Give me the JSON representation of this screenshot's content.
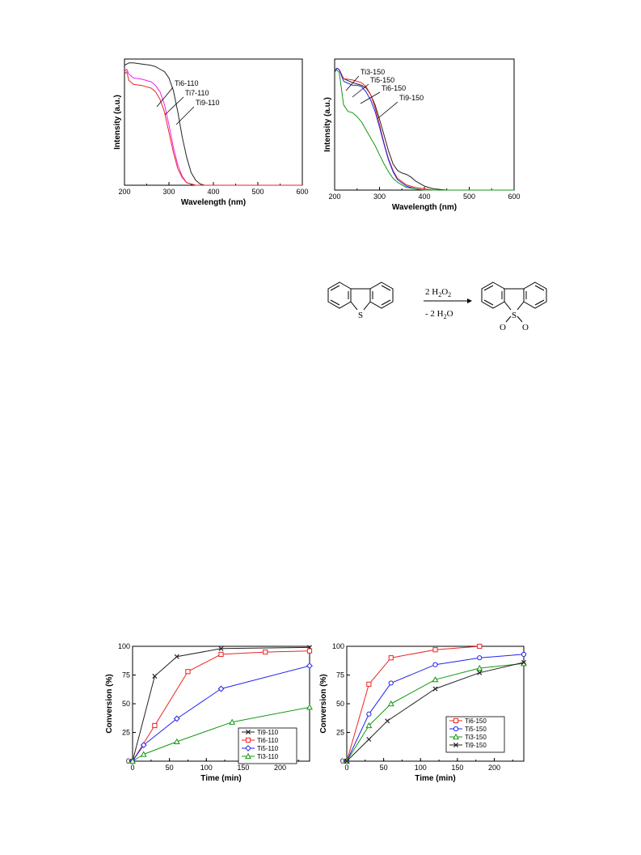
{
  "colors": {
    "black": "#222222",
    "red": "#ee2222",
    "blue": "#2222ee",
    "green": "#119911",
    "magenta": "#ee22ee"
  },
  "uv_left": {
    "chart_data": {
      "type": "line",
      "xlabel": "Wavelength (nm)",
      "ylabel": "Intensity (a.u.)",
      "xlim": [
        200,
        600
      ],
      "ylim": [
        0,
        1.0
      ],
      "xticks": [
        "200",
        "300",
        "400",
        "500",
        "600"
      ],
      "series": [
        {
          "name": "Ti6-110",
          "color": "#222222",
          "x": [
            200,
            210,
            220,
            240,
            260,
            270,
            280,
            290,
            300,
            310,
            320,
            330,
            340,
            350,
            360,
            370,
            380,
            400,
            600
          ],
          "y": [
            0.95,
            0.97,
            0.97,
            0.96,
            0.95,
            0.94,
            0.92,
            0.9,
            0.85,
            0.75,
            0.58,
            0.38,
            0.22,
            0.1,
            0.04,
            0.01,
            0.0,
            0.0,
            0.0
          ]
        },
        {
          "name": "Ti7-110",
          "color": "#ee22ee",
          "x": [
            200,
            205,
            210,
            220,
            240,
            260,
            270,
            280,
            290,
            300,
            310,
            320,
            330,
            340,
            350,
            360,
            380,
            600
          ],
          "y": [
            0.9,
            0.92,
            0.88,
            0.85,
            0.84,
            0.82,
            0.79,
            0.74,
            0.64,
            0.48,
            0.3,
            0.16,
            0.07,
            0.02,
            0.01,
            0.0,
            0.0,
            0.0
          ]
        },
        {
          "name": "Ti9-110",
          "color": "#ee2222",
          "x": [
            200,
            205,
            210,
            220,
            240,
            260,
            270,
            280,
            290,
            300,
            310,
            320,
            330,
            340,
            350,
            360,
            380,
            600
          ],
          "y": [
            0.88,
            0.9,
            0.83,
            0.8,
            0.79,
            0.77,
            0.74,
            0.68,
            0.58,
            0.42,
            0.26,
            0.13,
            0.06,
            0.02,
            0.01,
            0.0,
            0.0,
            0.0
          ]
        }
      ],
      "annotations": [
        "Ti6-110",
        "Ti7-110",
        "Ti9-110"
      ]
    }
  },
  "uv_right": {
    "chart_data": {
      "type": "line",
      "xlabel": "Wavelength (nm)",
      "ylabel": "Intensity (a.u.)",
      "xlim": [
        200,
        600
      ],
      "ylim": [
        0,
        1.0
      ],
      "xticks": [
        "200",
        "300",
        "400",
        "500",
        "600"
      ],
      "series": [
        {
          "name": "Ti3-150",
          "color": "#222222",
          "x": [
            200,
            205,
            210,
            220,
            240,
            260,
            270,
            280,
            290,
            300,
            310,
            320,
            330,
            340,
            350,
            360,
            370,
            380,
            400,
            420,
            450,
            600
          ],
          "y": [
            0.9,
            0.93,
            0.92,
            0.85,
            0.82,
            0.8,
            0.78,
            0.73,
            0.65,
            0.54,
            0.42,
            0.3,
            0.2,
            0.15,
            0.13,
            0.12,
            0.1,
            0.07,
            0.03,
            0.01,
            0.0,
            0.0
          ]
        },
        {
          "name": "Ti5-150",
          "color": "#ee2222",
          "x": [
            200,
            205,
            210,
            220,
            240,
            260,
            270,
            280,
            290,
            300,
            310,
            320,
            330,
            340,
            360,
            380,
            400,
            420,
            600
          ],
          "y": [
            0.9,
            0.93,
            0.92,
            0.85,
            0.84,
            0.82,
            0.79,
            0.73,
            0.63,
            0.5,
            0.36,
            0.24,
            0.15,
            0.09,
            0.04,
            0.02,
            0.01,
            0.0,
            0.0
          ]
        },
        {
          "name": "Ti6-150",
          "color": "#2222ee",
          "x": [
            200,
            205,
            210,
            220,
            240,
            250,
            260,
            270,
            280,
            290,
            300,
            310,
            320,
            330,
            340,
            360,
            380,
            400,
            420,
            600
          ],
          "y": [
            0.9,
            0.93,
            0.92,
            0.83,
            0.8,
            0.8,
            0.79,
            0.75,
            0.69,
            0.6,
            0.48,
            0.35,
            0.23,
            0.14,
            0.08,
            0.03,
            0.01,
            0.0,
            0.0,
            0.0
          ]
        },
        {
          "name": "Ti9-150",
          "color": "#119911",
          "x": [
            200,
            210,
            220,
            230,
            240,
            250,
            260,
            270,
            280,
            290,
            300,
            310,
            320,
            330,
            340,
            360,
            380,
            400,
            420,
            600
          ],
          "y": [
            0.93,
            0.9,
            0.65,
            0.6,
            0.59,
            0.56,
            0.52,
            0.46,
            0.4,
            0.34,
            0.27,
            0.2,
            0.14,
            0.09,
            0.06,
            0.02,
            0.01,
            0.0,
            0.0,
            0.0
          ]
        }
      ],
      "annotations": [
        "Ti3-150",
        "Ti5-150",
        "Ti6-150",
        "Ti9-150"
      ]
    }
  },
  "reaction": {
    "reagent_top": "2 H",
    "reagent_top_sub": "2",
    "reagent_top_o": "O",
    "reagent_top_sub2": "2",
    "reagent_bottom": "- 2 H",
    "reagent_bottom_sub": "2",
    "reagent_bottom_o": "O",
    "atom_s": "S",
    "atom_o": "O"
  },
  "conv_left": {
    "chart_data": {
      "type": "line",
      "xlabel": "Time (min)",
      "ylabel": "Conversion (%)",
      "xlim": [
        0,
        240
      ],
      "ylim": [
        0,
        100
      ],
      "xticks": [
        "0",
        "50",
        "100",
        "150",
        "200"
      ],
      "yticks": [
        "0",
        "25",
        "50",
        "75",
        "100"
      ],
      "legend_position": "bottom-right",
      "series": [
        {
          "name": "Ti9-110",
          "color": "#222222",
          "marker": "x",
          "x": [
            0,
            30,
            60,
            120,
            240
          ],
          "y": [
            0,
            74,
            91,
            98,
            99
          ]
        },
        {
          "name": "Ti6-110",
          "color": "#ee2222",
          "marker": "square",
          "x": [
            0,
            30,
            75,
            120,
            180,
            240
          ],
          "y": [
            0,
            31,
            78,
            93,
            95,
            96
          ]
        },
        {
          "name": "Ti5-110",
          "color": "#2222ee",
          "marker": "diamond",
          "x": [
            0,
            15,
            60,
            120,
            240
          ],
          "y": [
            0,
            14,
            37,
            63,
            83
          ]
        },
        {
          "name": "Ti3-110",
          "color": "#119911",
          "marker": "triangle",
          "x": [
            0,
            15,
            60,
            135,
            240
          ],
          "y": [
            0,
            6,
            17,
            34,
            47
          ]
        }
      ]
    }
  },
  "conv_right": {
    "chart_data": {
      "type": "line",
      "xlabel": "Time (min)",
      "ylabel": "Conversion (%)",
      "xlim": [
        0,
        240
      ],
      "ylim": [
        0,
        100
      ],
      "xticks": [
        "0",
        "50",
        "100",
        "150",
        "200"
      ],
      "yticks": [
        "0",
        "25",
        "50",
        "75",
        "100"
      ],
      "legend_position": "bottom-right",
      "series": [
        {
          "name": "Ti6-150",
          "color": "#ee2222",
          "marker": "square",
          "x": [
            0,
            30,
            60,
            120,
            180
          ],
          "y": [
            0,
            67,
            90,
            97,
            100
          ]
        },
        {
          "name": "Ti5-150",
          "color": "#2222ee",
          "marker": "circle",
          "x": [
            0,
            30,
            60,
            120,
            180,
            240
          ],
          "y": [
            0,
            41,
            68,
            84,
            90,
            93
          ]
        },
        {
          "name": "Ti3-150",
          "color": "#119911",
          "marker": "triangle",
          "x": [
            0,
            30,
            60,
            120,
            180,
            240
          ],
          "y": [
            0,
            31,
            50,
            71,
            81,
            85
          ]
        },
        {
          "name": "Ti9-150",
          "color": "#222222",
          "marker": "x",
          "x": [
            0,
            30,
            55,
            120,
            180,
            240
          ],
          "y": [
            0,
            19,
            35,
            63,
            77,
            86
          ]
        }
      ]
    }
  }
}
